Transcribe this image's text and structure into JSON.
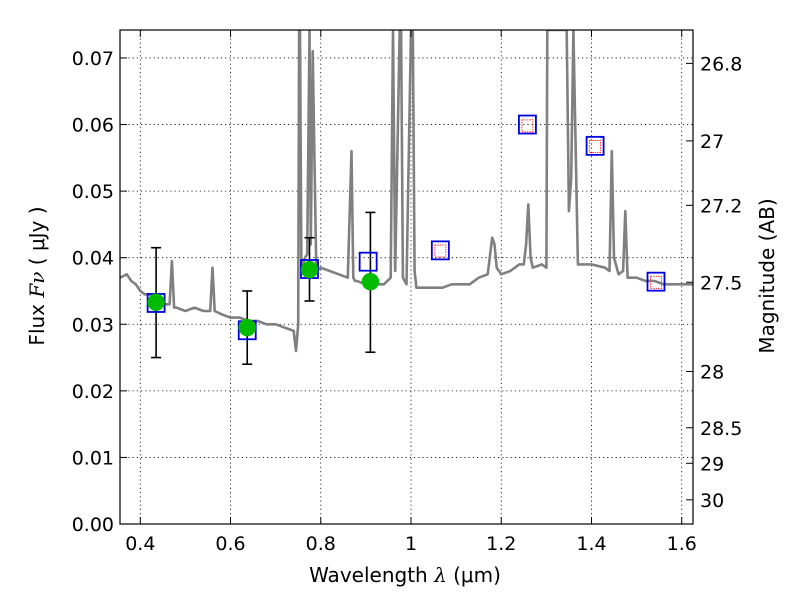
{
  "chart_data": {
    "type": "scatter",
    "title": "",
    "xlabel_prefix": "Wavelength  ",
    "xlabel_symbol": "λ",
    "xlabel_suffix": " (μm)",
    "ylabel_prefix": "Flux  ",
    "ylabel_symbol": "Fν",
    "ylabel_suffix": "  ( μJy )",
    "y2label": "Magnitude (AB)",
    "xlim": [
      0.355,
      1.625
    ],
    "ylim": [
      0.0,
      0.0742
    ],
    "grid": true,
    "x_ticks": [
      0.4,
      0.6,
      0.8,
      1.0,
      1.2,
      1.4,
      1.6
    ],
    "x_tick_labels": [
      "0.4",
      "0.6",
      "0.8",
      "1",
      "1.2",
      "1.4",
      "1.6"
    ],
    "y_ticks": [
      0.0,
      0.01,
      0.02,
      0.03,
      0.04,
      0.05,
      0.06,
      0.07
    ],
    "y_tick_labels": [
      "0.00",
      "0.01",
      "0.02",
      "0.03",
      "0.04",
      "0.05",
      "0.06",
      "0.07"
    ],
    "y2_ticks": [
      26.8,
      27.0,
      27.2,
      27.5,
      28.0,
      28.5,
      29.0,
      30.0
    ],
    "y2_tick_labels": [
      "26.8",
      "27",
      "27.2",
      "27.5",
      "28",
      "28.5",
      "29",
      "30"
    ],
    "series": [
      {
        "style": "line",
        "color": "#808080",
        "x": [
          0.355,
          0.37,
          0.38,
          0.39,
          0.4,
          0.41,
          0.42,
          0.43,
          0.44,
          0.45,
          0.46,
          0.465,
          0.47,
          0.475,
          0.48,
          0.5,
          0.52,
          0.54,
          0.555,
          0.56,
          0.565,
          0.58,
          0.6,
          0.62,
          0.64,
          0.66,
          0.68,
          0.7,
          0.72,
          0.74,
          0.745,
          0.75,
          0.752,
          0.754,
          0.757,
          0.76,
          0.765,
          0.77,
          0.775,
          0.778,
          0.782,
          0.79,
          0.8,
          0.82,
          0.84,
          0.86,
          0.868,
          0.872,
          0.876,
          0.88,
          0.9,
          0.92,
          0.94,
          0.955,
          0.96,
          0.965,
          0.975,
          0.978,
          0.982,
          0.99,
          1.0,
          1.004,
          1.008,
          1.012,
          1.03,
          1.05,
          1.07,
          1.09,
          1.11,
          1.13,
          1.15,
          1.17,
          1.18,
          1.185,
          1.19,
          1.2,
          1.22,
          1.24,
          1.25,
          1.255,
          1.26,
          1.265,
          1.27,
          1.29,
          1.3,
          1.302,
          1.308,
          1.32,
          1.335,
          1.34,
          1.345,
          1.35,
          1.355,
          1.36,
          1.37,
          1.4,
          1.43,
          1.44,
          1.445,
          1.45,
          1.46,
          1.47,
          1.475,
          1.48,
          1.5,
          1.52,
          1.54,
          1.56,
          1.58,
          1.6,
          1.625
        ],
        "y": [
          0.037,
          0.0375,
          0.0365,
          0.036,
          0.035,
          0.0345,
          0.0345,
          0.034,
          0.0335,
          0.033,
          0.033,
          0.033,
          0.0395,
          0.0325,
          0.0325,
          0.032,
          0.0325,
          0.032,
          0.032,
          0.0385,
          0.032,
          0.0315,
          0.031,
          0.031,
          0.0305,
          0.0305,
          0.03,
          0.03,
          0.0295,
          0.029,
          0.026,
          0.03,
          0.0742,
          0.0742,
          0.038,
          0.039,
          0.04,
          0.0405,
          0.0742,
          0.042,
          0.071,
          0.038,
          0.0385,
          0.038,
          0.0375,
          0.037,
          0.056,
          0.037,
          0.0365,
          0.0365,
          0.036,
          0.036,
          0.036,
          0.037,
          0.0742,
          0.038,
          0.0742,
          0.0742,
          0.037,
          0.036,
          0.0742,
          0.0742,
          0.038,
          0.0355,
          0.0355,
          0.0355,
          0.0355,
          0.036,
          0.036,
          0.036,
          0.037,
          0.0375,
          0.043,
          0.042,
          0.0385,
          0.0375,
          0.038,
          0.039,
          0.039,
          0.042,
          0.048,
          0.04,
          0.0385,
          0.039,
          0.0385,
          0.0742,
          0.0742,
          0.0742,
          0.0742,
          0.0742,
          0.0742,
          0.047,
          0.052,
          0.0742,
          0.039,
          0.039,
          0.0385,
          0.038,
          0.056,
          0.04,
          0.0375,
          0.038,
          0.047,
          0.037,
          0.037,
          0.0365,
          0.0365,
          0.036,
          0.036,
          0.036,
          0.036
        ]
      },
      {
        "style": "points",
        "marker": "circle",
        "color": "#00bb00",
        "x": [
          0.435,
          0.637,
          0.775,
          0.91
        ],
        "y": [
          0.0333,
          0.0295,
          0.0382,
          0.0364
        ],
        "yerr_low": [
          0.025,
          0.024,
          0.0335,
          0.0258
        ],
        "yerr_high": [
          0.0415,
          0.035,
          0.043,
          0.0468
        ]
      },
      {
        "style": "points",
        "marker": "square-open",
        "color": "#0000dd",
        "x": [
          0.435,
          0.637,
          0.775,
          0.905,
          1.065,
          1.258,
          1.408,
          1.543
        ],
        "y": [
          0.0332,
          0.0291,
          0.0383,
          0.0394,
          0.0411,
          0.06,
          0.0568,
          0.0364
        ]
      },
      {
        "style": "points",
        "marker": "square-open-small",
        "color": "#ff3333",
        "x": [
          1.065,
          1.258,
          1.408,
          1.543
        ],
        "y": [
          0.041,
          0.0598,
          0.0567,
          0.0363
        ]
      }
    ]
  }
}
